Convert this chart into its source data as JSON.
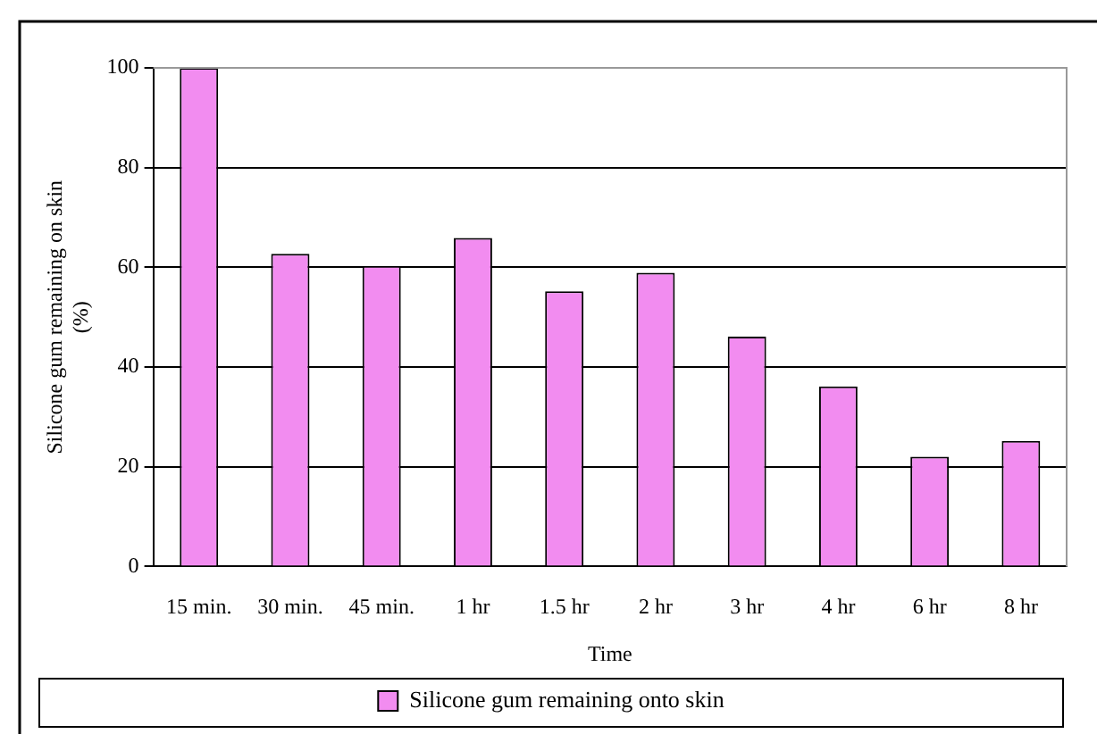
{
  "chart_data": {
    "type": "bar",
    "xlabel": "Time",
    "ylabel": "Silicone gum remaining on skin\n(%)",
    "categories": [
      "15 min.",
      "30 min.",
      "45 min.",
      "1 hr",
      "1.5 hr",
      "2 hr",
      "3 hr",
      "4 hr",
      "6 hr",
      "8 hr"
    ],
    "series": [
      {
        "name": "Silicone gum remaining onto skin",
        "color": "#f28cf0",
        "values": [
          100,
          62.7,
          60.3,
          65.9,
          55.2,
          58.9,
          46.1,
          36.1,
          22,
          25.2
        ]
      }
    ],
    "ylim": [
      0,
      100
    ],
    "yticks": [
      0,
      20,
      40,
      60,
      80,
      100
    ],
    "grid": "y",
    "legend": "bottom"
  }
}
